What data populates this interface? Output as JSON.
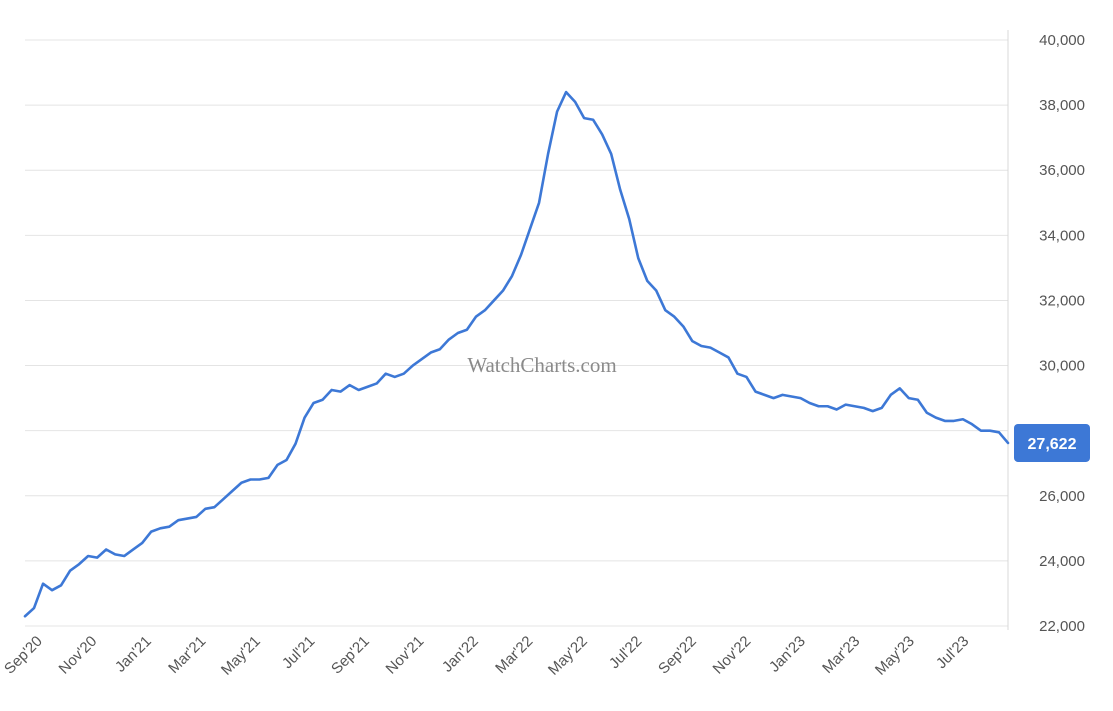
{
  "watermark": "WatchCharts.com",
  "colors": {
    "line": "#3d78d6",
    "grid": "#e4e4e4",
    "label_bg": "#3d78d6",
    "label_text": "#ffffff",
    "tick_text": "#555555"
  },
  "chart_data": {
    "type": "line",
    "title": "",
    "xlabel": "",
    "ylabel": "",
    "ylim": [
      22000,
      40000
    ],
    "y_ticks": [
      "22,000",
      "24,000",
      "26,000",
      "28,000",
      "30,000",
      "32,000",
      "34,000",
      "36,000",
      "38,000",
      "40,000"
    ],
    "x_ticks": [
      "Sep'20",
      "Nov'20",
      "Jan'21",
      "Mar'21",
      "May'21",
      "Jul'21",
      "Sep'21",
      "Nov'21",
      "Jan'22",
      "Mar'22",
      "May'22",
      "Jul'22",
      "Sep'22",
      "Nov'22",
      "Jan'23",
      "Mar'23",
      "May'23",
      "Jul'23"
    ],
    "grid": true,
    "y_axis_side": "right",
    "last_value_label": "27,622",
    "series": [
      {
        "values": [
          22300,
          22550,
          23300,
          23100,
          23250,
          23700,
          23900,
          24150,
          24100,
          24350,
          24200,
          24150,
          24350,
          24550,
          24900,
          25000,
          25050,
          25250,
          25300,
          25350,
          25600,
          25650,
          25900,
          26150,
          26400,
          26500,
          26500,
          26550,
          26950,
          27100,
          27600,
          28400,
          28850,
          28950,
          29250,
          29200,
          29400,
          29250,
          29350,
          29450,
          29750,
          29650,
          29750,
          30000,
          30200,
          30400,
          30500,
          30800,
          31000,
          31100,
          31500,
          31700,
          32000,
          32300,
          32750,
          33400,
          34200,
          35000,
          36500,
          37800,
          38400,
          38100,
          37600,
          37550,
          37100,
          36500,
          35400,
          34500,
          33300,
          32600,
          32300,
          31700,
          31500,
          31200,
          30750,
          30600,
          30550,
          30400,
          30250,
          29750,
          29650,
          29200,
          29100,
          29000,
          29100,
          29050,
          29000,
          28850,
          28750,
          28750,
          28650,
          28800,
          28750,
          28700,
          28600,
          28700,
          29100,
          29300,
          29000,
          28950,
          28550,
          28400,
          28300,
          28300,
          28350,
          28200,
          28000,
          28000,
          27950,
          27622
        ]
      }
    ]
  }
}
